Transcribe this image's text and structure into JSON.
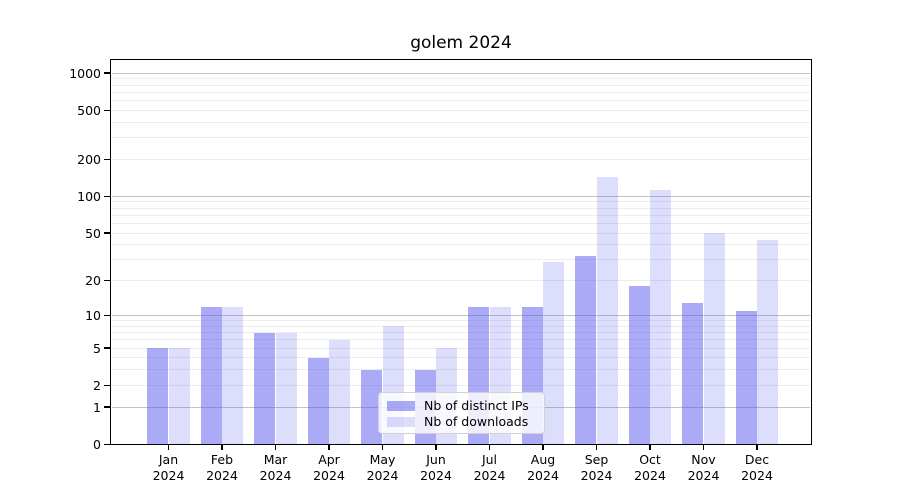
{
  "chart_data": {
    "type": "bar",
    "title": "golem 2024",
    "categories": [
      "Jan",
      "Feb",
      "Mar",
      "Apr",
      "May",
      "Jun",
      "Jul",
      "Aug",
      "Sep",
      "Oct",
      "Nov",
      "Dec"
    ],
    "category_year": "2024",
    "series": [
      {
        "name": "Nb of distinct IPs",
        "color": "#5555ee",
        "opacity": 0.5,
        "values": [
          5,
          12,
          7,
          4,
          3,
          3,
          12,
          12,
          32,
          18,
          13,
          11
        ]
      },
      {
        "name": "Nb of downloads",
        "color": "#5555ee",
        "opacity": 0.2,
        "values": [
          5,
          12,
          7,
          6,
          8,
          5,
          12,
          29,
          145,
          113,
          50,
          44
        ]
      }
    ],
    "yscale": "log1p",
    "ytick_values": [
      0,
      1,
      2,
      5,
      10,
      20,
      50,
      100,
      200,
      500,
      1000
    ],
    "ytick_labels": [
      "0",
      "1",
      "2",
      "5",
      "10",
      "20",
      "50",
      "100",
      "200",
      "500",
      "1000"
    ],
    "major_grid_values": [
      1,
      10,
      100,
      1000
    ],
    "minor_grid_values": [
      2,
      3,
      4,
      5,
      6,
      7,
      8,
      9,
      20,
      30,
      40,
      50,
      60,
      70,
      80,
      90,
      200,
      300,
      400,
      500,
      600,
      700,
      800,
      900
    ],
    "ylim": [
      0,
      1290
    ],
    "grid": true,
    "legend_position": "lower center",
    "colors": {
      "grid_major": "#c3c3c3",
      "grid_minor": "#ededed",
      "axis": "#000000"
    }
  }
}
